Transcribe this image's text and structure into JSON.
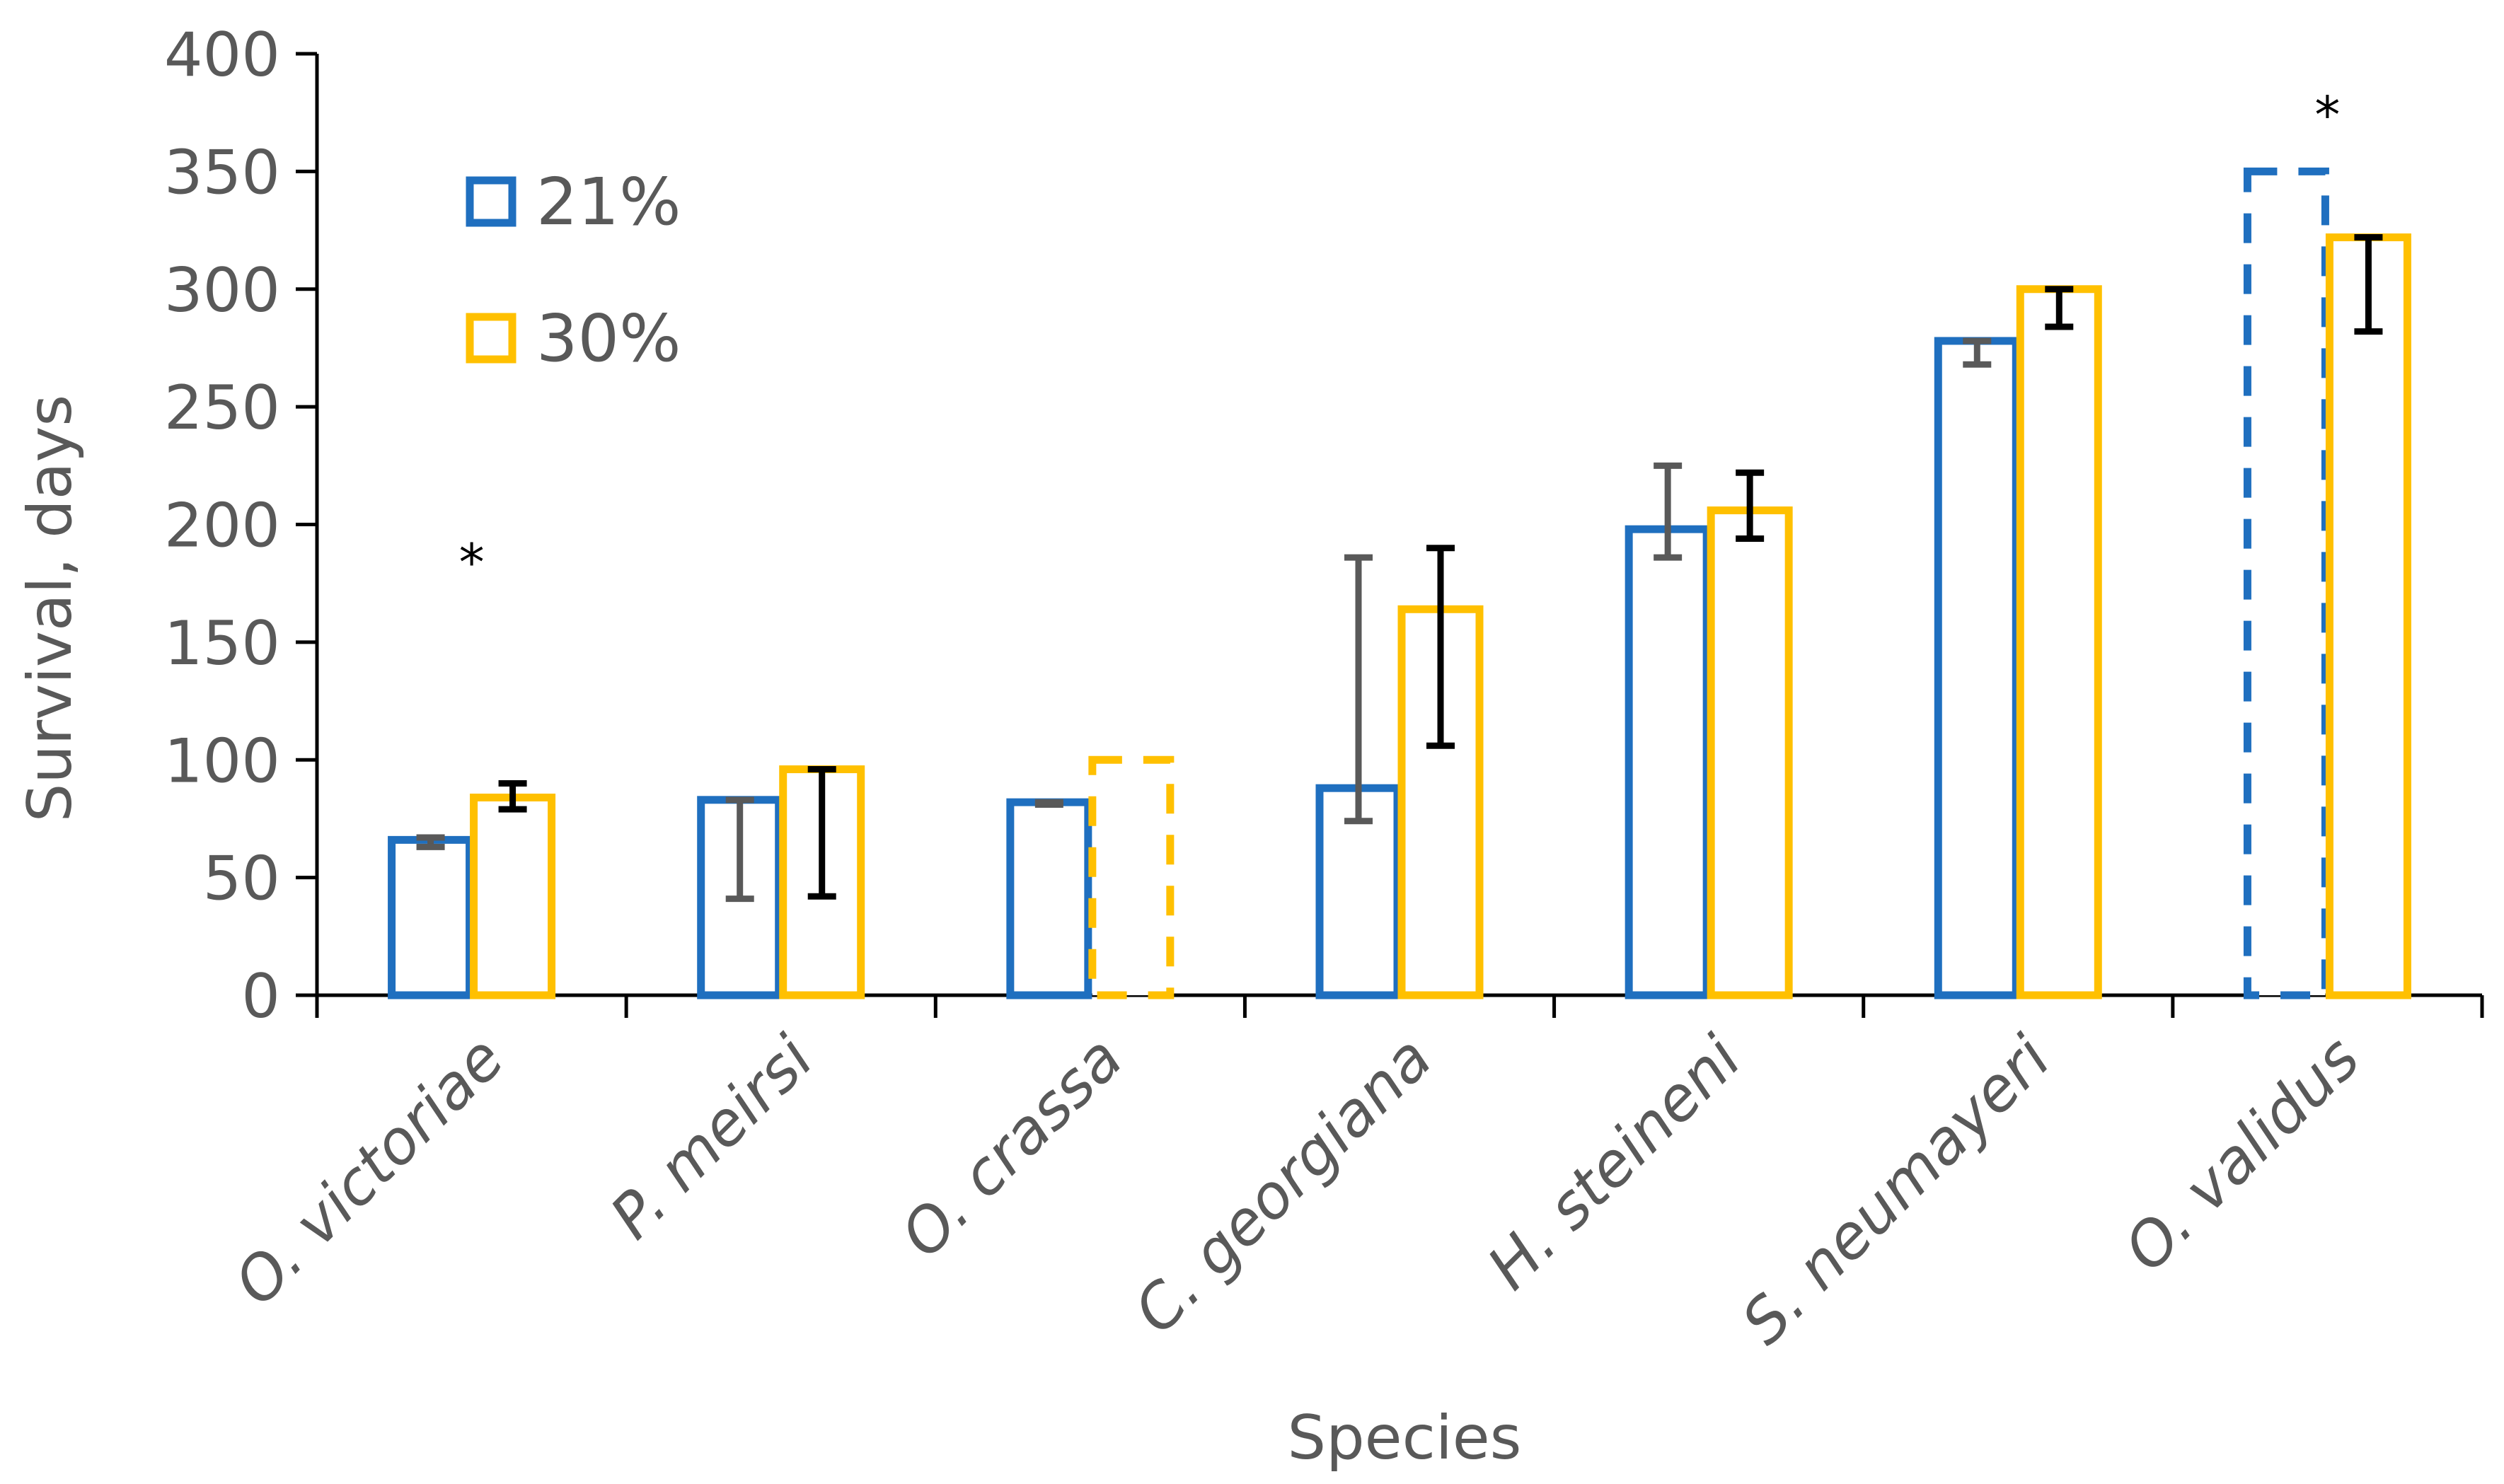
{
  "chart_data": {
    "type": "bar",
    "title": "",
    "xlabel": "Species",
    "ylabel": "Survival, days",
    "ylim": [
      0,
      400
    ],
    "yticks": [
      "0",
      "50",
      "100",
      "150",
      "200",
      "250",
      "300",
      "350",
      "400"
    ],
    "grid": false,
    "legend_position": "top-left",
    "categories": [
      "O. victoriae",
      "P. meirsi",
      "O. crassa",
      "C. georgiana",
      "H. steineni",
      "S. neumayeri",
      "O. validus"
    ],
    "series": [
      {
        "name": "21%",
        "color": "#1F6FBF",
        "values": [
          66,
          83,
          82,
          88,
          198,
          278,
          350
        ],
        "dashed": [
          false,
          false,
          false,
          false,
          false,
          false,
          true
        ],
        "error_low": [
          63,
          41,
          81,
          74,
          186,
          268,
          null
        ],
        "error_high": [
          67,
          83,
          82,
          186,
          225,
          278,
          null
        ]
      },
      {
        "name": "30%",
        "color": "#FFC000",
        "values": [
          84,
          96,
          100,
          164,
          206,
          300,
          322
        ],
        "dashed": [
          false,
          false,
          true,
          false,
          false,
          false,
          false
        ],
        "error_low": [
          79,
          42,
          null,
          106,
          194,
          284,
          282
        ],
        "error_high": [
          90,
          96,
          null,
          190,
          222,
          300,
          322
        ]
      }
    ],
    "annotations": [
      {
        "text": "*",
        "category": "O. victoriae",
        "value": 190
      },
      {
        "text": "*",
        "category": "O. validus",
        "value": 380
      }
    ]
  }
}
